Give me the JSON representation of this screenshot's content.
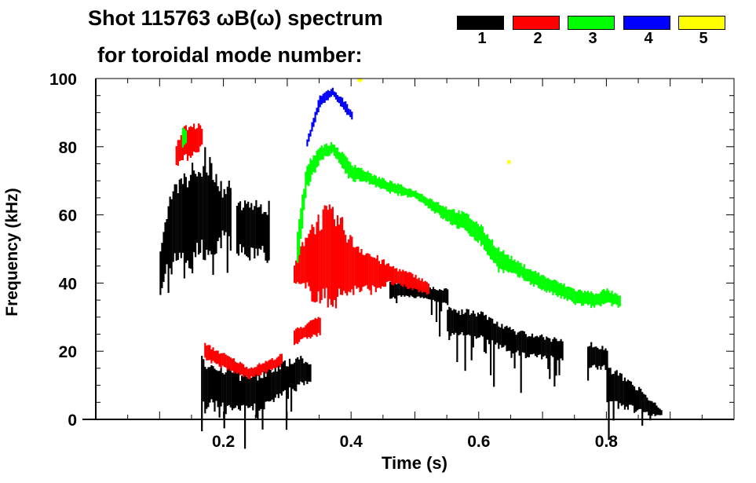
{
  "chart_data": {
    "type": "heatmap",
    "title": "Shot 115763 ωB(ω) spectrum",
    "subtitle": "for toroidal mode number:",
    "xlabel": "Time (s)",
    "ylabel": "Frequency (kHz)",
    "xlim": [
      0,
      1.0
    ],
    "ylim": [
      0,
      100
    ],
    "xticks": [
      "0.2",
      "0.4",
      "0.6",
      "0.8"
    ],
    "xtick_values": [
      0.2,
      0.4,
      0.6,
      0.8
    ],
    "yticks": [
      "0",
      "20",
      "40",
      "60",
      "80",
      "100"
    ],
    "ytick_values": [
      0,
      20,
      40,
      60,
      80,
      100
    ],
    "legend": [
      {
        "label": "1",
        "color": "#000000"
      },
      {
        "label": "2",
        "color": "#ff0000"
      },
      {
        "label": "3",
        "color": "#00ff00"
      },
      {
        "label": "4",
        "color": "#0000ff"
      },
      {
        "label": "5",
        "color": "#ffff00"
      }
    ],
    "series": [
      {
        "name": "1",
        "color": "#000000",
        "bands": [
          [
            [
              0.1,
              38,
              48
            ],
            [
              0.11,
              44,
              60
            ],
            [
              0.12,
              45,
              66
            ],
            [
              0.13,
              50,
              68
            ],
            [
              0.14,
              47,
              70
            ],
            [
              0.15,
              45,
              72
            ],
            [
              0.16,
              50,
              72
            ],
            [
              0.17,
              50,
              76
            ],
            [
              0.18,
              45,
              73
            ],
            [
              0.19,
              50,
              70
            ],
            [
              0.2,
              55,
              66
            ],
            [
              0.21,
              52,
              70
            ]
          ],
          [
            [
              0.22,
              50,
              62
            ],
            [
              0.24,
              48,
              63
            ],
            [
              0.26,
              50,
              62
            ],
            [
              0.27,
              45,
              62
            ]
          ],
          [
            [
              0.165,
              5,
              17
            ],
            [
              0.2,
              3,
              15
            ],
            [
              0.23,
              3,
              12
            ],
            [
              0.26,
              4,
              13
            ],
            [
              0.29,
              7,
              16
            ],
            [
              0.32,
              10,
              18
            ],
            [
              0.335,
              12,
              16
            ]
          ],
          [
            [
              0.46,
              36,
              40
            ],
            [
              0.5,
              36,
              39
            ],
            [
              0.55,
              34,
              38
            ]
          ],
          [
            [
              0.55,
              25,
              32
            ],
            [
              0.6,
              24,
              31
            ],
            [
              0.65,
              20,
              26
            ],
            [
              0.7,
              18,
              24
            ],
            [
              0.73,
              18,
              23
            ]
          ],
          [
            [
              0.77,
              16,
              22
            ],
            [
              0.8,
              15,
              21
            ]
          ],
          [
            [
              0.8,
              5,
              15
            ],
            [
              0.83,
              4,
              12
            ],
            [
              0.86,
              2,
              7
            ],
            [
              0.885,
              1,
              3
            ]
          ]
        ]
      },
      {
        "name": "2",
        "color": "#ff0000",
        "bands": [
          [
            [
              0.125,
              75,
              80
            ],
            [
              0.135,
              76,
              85
            ],
            [
              0.15,
              78,
              86
            ],
            [
              0.165,
              80,
              86
            ]
          ],
          [
            [
              0.17,
              18,
              22
            ],
            [
              0.2,
              15,
              19
            ],
            [
              0.24,
              12,
              15
            ],
            [
              0.28,
              15,
              18
            ],
            [
              0.29,
              16,
              19
            ]
          ],
          [
            [
              0.31,
              40,
              45
            ],
            [
              0.33,
              38,
              55
            ],
            [
              0.36,
              35,
              60
            ],
            [
              0.38,
              36,
              58
            ],
            [
              0.4,
              38,
              52
            ],
            [
              0.43,
              38,
              48
            ],
            [
              0.46,
              40,
              45
            ],
            [
              0.5,
              38,
              42
            ],
            [
              0.52,
              37,
              40
            ]
          ],
          [
            [
              0.31,
              22,
              26
            ],
            [
              0.33,
              24,
              28
            ],
            [
              0.35,
              25,
              30
            ]
          ]
        ]
      },
      {
        "name": "3",
        "color": "#00ff00",
        "bands": [
          [
            [
              0.315,
              45,
              55
            ],
            [
              0.33,
              68,
              75
            ],
            [
              0.35,
              76,
              80
            ],
            [
              0.37,
              78,
              81
            ],
            [
              0.4,
              70,
              75
            ],
            [
              0.42,
              70,
              73
            ],
            [
              0.44,
              68,
              71
            ],
            [
              0.47,
              66,
              69
            ],
            [
              0.5,
              65,
              67
            ],
            [
              0.55,
              58,
              62
            ],
            [
              0.58,
              55,
              60
            ],
            [
              0.6,
              52,
              57
            ],
            [
              0.63,
              44,
              50
            ],
            [
              0.66,
              42,
              46
            ],
            [
              0.7,
              38,
              42
            ],
            [
              0.75,
              34,
              38
            ],
            [
              0.78,
              33,
              37
            ],
            [
              0.8,
              34,
              38
            ],
            [
              0.82,
              33,
              36
            ]
          ],
          [
            [
              0.135,
              80,
              85
            ],
            [
              0.14,
              81,
              85
            ]
          ]
        ]
      },
      {
        "name": "4",
        "color": "#0000ff",
        "bands": [
          [
            [
              0.33,
              80,
              82
            ],
            [
              0.35,
              92,
              95
            ],
            [
              0.37,
              95,
              97
            ],
            [
              0.39,
              90,
              93
            ],
            [
              0.4,
              88,
              90
            ]
          ]
        ]
      },
      {
        "name": "5",
        "color": "#ffff00",
        "bands": [
          [
            [
              0.41,
              99,
              100
            ],
            [
              0.415,
              99,
              100
            ]
          ],
          [
            [
              0.645,
              75,
              76
            ],
            [
              0.648,
              75,
              76
            ]
          ]
        ]
      }
    ]
  }
}
